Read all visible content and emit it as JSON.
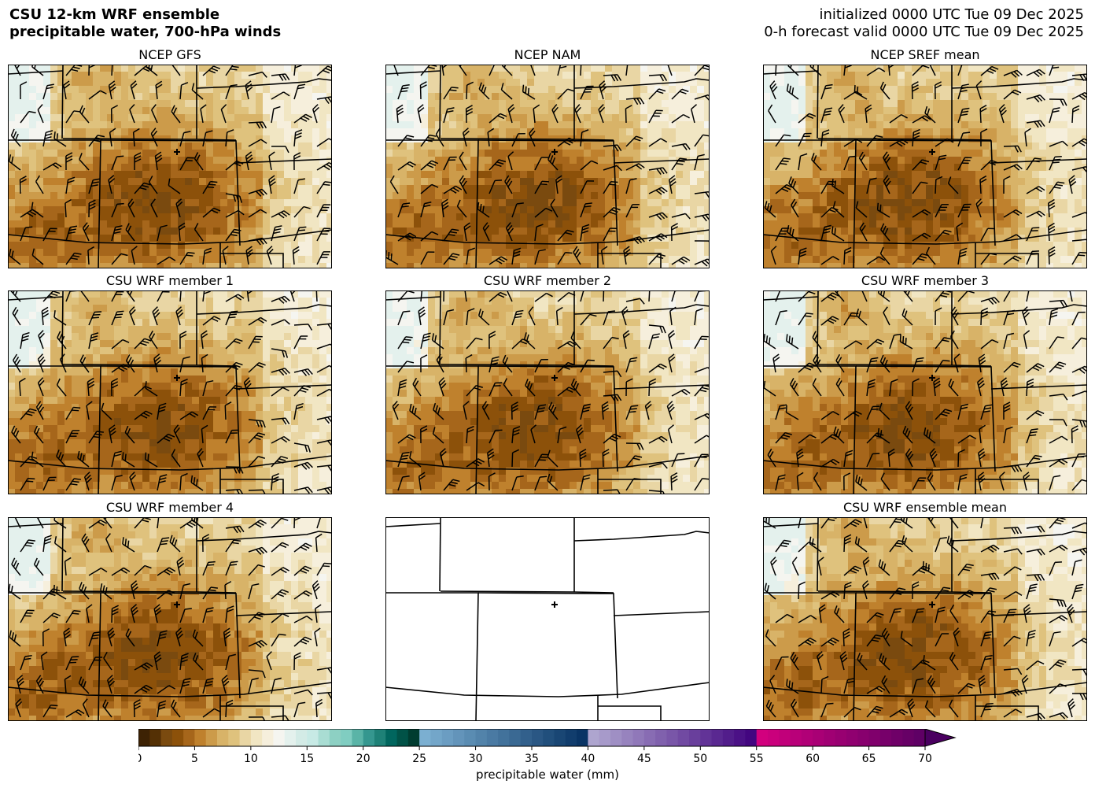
{
  "title": {
    "line1": "CSU 12-km WRF ensemble",
    "line2": "precipitable water, 700-hPa winds",
    "init": "initialized 0000 UTC Tue 09 Dec 2025",
    "valid": "0-h forecast valid 0000 UTC Tue 09 Dec 2025"
  },
  "panels": [
    {
      "title": "NCEP GFS",
      "has_data": true
    },
    {
      "title": "NCEP NAM",
      "has_data": true
    },
    {
      "title": "NCEP SREF mean",
      "has_data": true
    },
    {
      "title": "CSU WRF member 1",
      "has_data": true
    },
    {
      "title": "CSU WRF member 2",
      "has_data": true
    },
    {
      "title": "CSU WRF member 3",
      "has_data": true
    },
    {
      "title": "CSU WRF member 4",
      "has_data": true
    },
    {
      "title": "",
      "has_data": false
    },
    {
      "title": "CSU WRF ensemble mean",
      "has_data": true
    }
  ],
  "colorbar": {
    "label": "precipitable water (mm)",
    "ticks": [
      "0",
      "5",
      "10",
      "15",
      "20",
      "25",
      "30",
      "35",
      "40",
      "45",
      "50",
      "55",
      "60",
      "65",
      "70"
    ],
    "range": [
      0,
      72
    ],
    "extend": "max"
  },
  "chart_data": {
    "type": "heatmap",
    "variable": "precipitable water",
    "units": "mm",
    "overlay": "700-hPa wind barbs",
    "typical_value_range": [
      1,
      12
    ],
    "colors": {
      "dry_brown": "#543005",
      "tan": "#dfc27d",
      "near_white": "#f6f5f1",
      "teal": "#35978f",
      "blue": "#2166ac",
      "purple": "#542788",
      "magenta": "#b8008a"
    }
  }
}
